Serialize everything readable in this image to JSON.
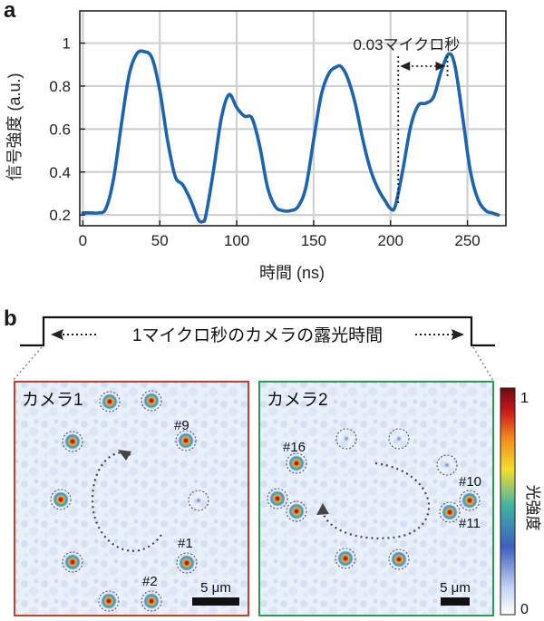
{
  "panel_a": {
    "letter": "a",
    "chart_data": {
      "type": "line",
      "title": "",
      "xlabel": "時間 (ns)",
      "ylabel": "信号強度 (a.u.)",
      "xlim": [
        -2,
        275
      ],
      "ylim": [
        0.15,
        1.15
      ],
      "xticks": [
        0,
        50,
        100,
        150,
        200,
        250
      ],
      "yticks": [
        0.2,
        0.4,
        0.6,
        0.8,
        1
      ],
      "ytick_labels": [
        "0.2",
        "0.4",
        "0.6",
        "0.8",
        "1"
      ],
      "grid": true,
      "series": [
        {
          "name": "signal",
          "color": "#1a64b4",
          "x": [
            0,
            5,
            10,
            15,
            20,
            25,
            30,
            35,
            40,
            45,
            50,
            55,
            60,
            65,
            70,
            75,
            78,
            80,
            85,
            90,
            95,
            100,
            105,
            110,
            115,
            120,
            125,
            130,
            135,
            140,
            145,
            150,
            155,
            160,
            165,
            168,
            172,
            177,
            182,
            187,
            192,
            197,
            200,
            203,
            208,
            213,
            218,
            223,
            228,
            233,
            238,
            242,
            247,
            252,
            257,
            262,
            266,
            270
          ],
          "y": [
            0.21,
            0.21,
            0.21,
            0.23,
            0.37,
            0.62,
            0.85,
            0.95,
            0.96,
            0.93,
            0.78,
            0.55,
            0.38,
            0.34,
            0.27,
            0.18,
            0.17,
            0.2,
            0.41,
            0.65,
            0.76,
            0.7,
            0.66,
            0.65,
            0.52,
            0.33,
            0.24,
            0.22,
            0.22,
            0.24,
            0.33,
            0.55,
            0.76,
            0.86,
            0.89,
            0.89,
            0.84,
            0.72,
            0.55,
            0.41,
            0.32,
            0.26,
            0.23,
            0.24,
            0.41,
            0.61,
            0.71,
            0.72,
            0.75,
            0.87,
            0.95,
            0.89,
            0.65,
            0.4,
            0.27,
            0.22,
            0.21,
            0.2
          ]
        }
      ],
      "annotation": {
        "text": "0.03マイクロ秒",
        "x_start": 205,
        "x_end": 237
      }
    }
  },
  "panel_b": {
    "letter": "b",
    "exposure_label": "1マイクロ秒のカメラの露光時間",
    "camera1": {
      "label": "カメラ1",
      "spot_labels": [
        "#9",
        "#1",
        "#2"
      ],
      "scale_bar": "5 μm"
    },
    "camera2": {
      "label": "カメラ2",
      "spot_labels": [
        "#16",
        "#10",
        "#11"
      ],
      "scale_bar": "5 μm"
    },
    "colorbar": {
      "label": "光強度",
      "max_label": "1",
      "min_label": "0",
      "colors": [
        "#ffffff",
        "#3d5fbf",
        "#41b3a2",
        "#f1df2e",
        "#f08a1a",
        "#c7161c",
        "#6e0b0d"
      ]
    }
  }
}
